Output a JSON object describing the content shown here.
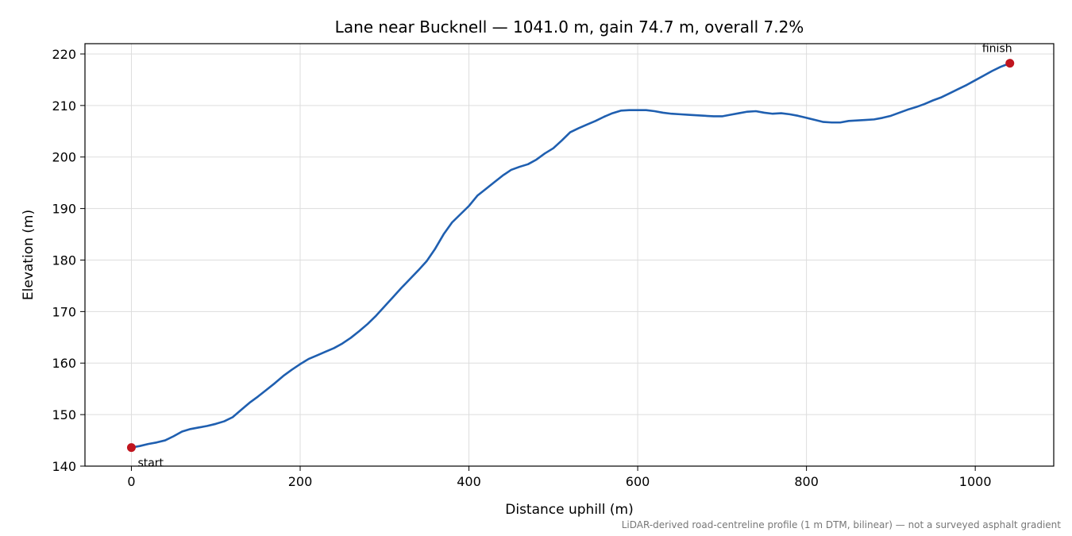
{
  "chart_data": {
    "type": "line",
    "title": "Lane near Bucknell — 1041.0 m, gain 74.7 m, overall 7.2%",
    "xlabel": "Distance uphill (m)",
    "ylabel": "Elevation (m)",
    "xlim": [
      -55,
      1093
    ],
    "ylim": [
      140,
      222
    ],
    "xticks": [
      0,
      200,
      400,
      600,
      800,
      1000
    ],
    "yticks": [
      140,
      150,
      160,
      170,
      180,
      190,
      200,
      210,
      220
    ],
    "grid": true,
    "series": [
      {
        "color": "#1f5fb0",
        "x": [
          0,
          10,
          20,
          30,
          40,
          50,
          60,
          70,
          80,
          90,
          100,
          110,
          120,
          130,
          140,
          150,
          160,
          170,
          180,
          190,
          200,
          210,
          220,
          230,
          240,
          250,
          260,
          270,
          280,
          290,
          300,
          310,
          320,
          330,
          340,
          350,
          360,
          370,
          380,
          390,
          400,
          410,
          420,
          430,
          440,
          450,
          460,
          470,
          480,
          490,
          500,
          510,
          520,
          530,
          540,
          550,
          560,
          570,
          580,
          590,
          600,
          610,
          620,
          630,
          640,
          650,
          660,
          670,
          680,
          690,
          700,
          710,
          720,
          730,
          740,
          750,
          760,
          770,
          780,
          790,
          800,
          810,
          820,
          830,
          840,
          850,
          860,
          870,
          880,
          890,
          900,
          910,
          920,
          930,
          940,
          950,
          960,
          970,
          980,
          990,
          1000,
          1010,
          1020,
          1030,
          1041
        ],
        "y": [
          143.6,
          143.9,
          144.3,
          144.6,
          145.0,
          145.8,
          146.7,
          147.2,
          147.5,
          147.8,
          148.2,
          148.7,
          149.5,
          150.9,
          152.3,
          153.5,
          154.8,
          156.1,
          157.5,
          158.7,
          159.8,
          160.8,
          161.5,
          162.2,
          162.9,
          163.8,
          164.9,
          166.2,
          167.6,
          169.2,
          171.0,
          172.8,
          174.6,
          176.3,
          178.0,
          179.8,
          182.2,
          185.0,
          187.3,
          188.9,
          190.5,
          192.5,
          193.8,
          195.1,
          196.4,
          197.5,
          198.1,
          198.6,
          199.5,
          200.7,
          201.7,
          203.2,
          204.8,
          205.6,
          206.3,
          207.0,
          207.8,
          208.5,
          209.0,
          209.1,
          209.1,
          209.1,
          208.9,
          208.6,
          208.4,
          208.3,
          208.2,
          208.1,
          208.0,
          207.9,
          207.9,
          208.2,
          208.5,
          208.8,
          208.9,
          208.6,
          208.4,
          208.5,
          208.3,
          208.0,
          207.6,
          207.2,
          206.8,
          206.7,
          206.7,
          207.0,
          207.1,
          207.2,
          207.3,
          207.6,
          208.0,
          208.6,
          209.2,
          209.7,
          210.3,
          211.0,
          211.6,
          212.4,
          213.2,
          214.0,
          214.9,
          215.8,
          216.7,
          217.5,
          218.2
        ]
      }
    ],
    "markers": [
      {
        "x": 0,
        "y": 143.6,
        "label": "start",
        "color": "#c0151f"
      },
      {
        "x": 1041,
        "y": 218.2,
        "label": "finish",
        "color": "#c0151f"
      }
    ],
    "footnote": "LiDAR-derived road-centreline profile (1 m DTM, bilinear) — not a surveyed asphalt gradient"
  }
}
